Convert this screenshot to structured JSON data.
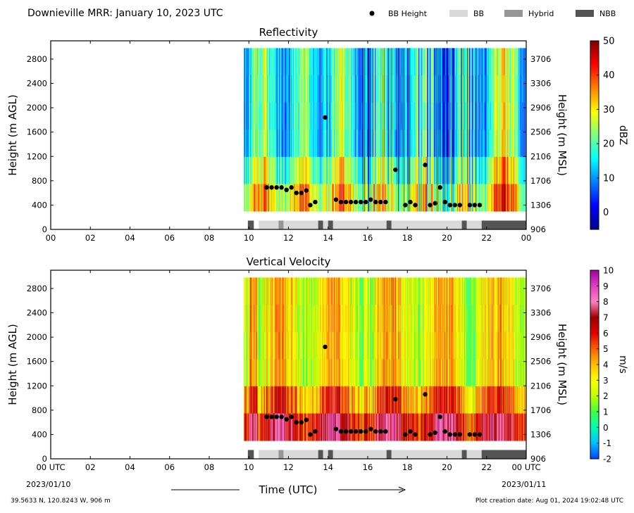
{
  "header": {
    "title": "Downieville MRR:  January 10, 2023 UTC",
    "legend": [
      {
        "label": "BB Height",
        "kind": "dot",
        "color": "#000000"
      },
      {
        "label": "BB",
        "kind": "box",
        "color": "#dadada"
      },
      {
        "label": "Hybrid",
        "kind": "box",
        "color": "#969696"
      },
      {
        "label": "NBB",
        "kind": "box",
        "color": "#545454"
      }
    ]
  },
  "footer": {
    "location": "39.5633 N, 120.8243 W, 906 m",
    "creation": "Plot creation date: Aug 01, 2024 19:02:48 UTC",
    "xlabel": "Time (UTC)",
    "start_date": "2023/01/10",
    "end_date": "2023/01/11"
  },
  "chart_data": [
    {
      "type": "heatmap",
      "title": "Reflectivity",
      "xlabel": "Time (UTC)",
      "ylabel": "Height (m AGL)",
      "ylabel_right": "Height (m MSL)",
      "colorbar_label": "dBZ",
      "xticks": [
        "00",
        "02",
        "04",
        "06",
        "08",
        "10",
        "12",
        "14",
        "16",
        "18",
        "20",
        "22",
        "00"
      ],
      "xlim": [
        0,
        24
      ],
      "yticks_left": [
        0,
        400,
        800,
        1200,
        1600,
        2000,
        2400,
        2800
      ],
      "yticks_right": [
        906,
        1306,
        1706,
        2106,
        2506,
        2906,
        3306,
        3706
      ],
      "ylim": [
        0,
        3100
      ],
      "colorbar_ticks": [
        0,
        10,
        20,
        30,
        40,
        50
      ],
      "colorbar_range": [
        -5,
        50
      ],
      "colormap": [
        "#00008f",
        "#0000ff",
        "#0080ff",
        "#00ffff",
        "#80ff80",
        "#ffff00",
        "#ff8000",
        "#ff0000",
        "#800000"
      ],
      "data_start_hour": 9.75,
      "data_bottom_m": 300,
      "bb_height": {
        "x": [
          10.9,
          11.15,
          11.4,
          11.65,
          11.9,
          12.15,
          12.4,
          12.65,
          12.9,
          13.1,
          13.35,
          13.85,
          14.4,
          14.65,
          14.9,
          15.15,
          15.4,
          15.65,
          15.9,
          16.15,
          16.4,
          16.65,
          16.9,
          17.4,
          17.9,
          18.15,
          18.4,
          18.9,
          19.15,
          19.4,
          19.65,
          19.9,
          20.15,
          20.4,
          20.65,
          21.15,
          21.4,
          21.65
        ],
        "y": [
          690,
          690,
          690,
          690,
          650,
          690,
          600,
          600,
          640,
          400,
          450,
          1840,
          490,
          450,
          450,
          450,
          450,
          450,
          450,
          490,
          450,
          450,
          450,
          980,
          400,
          450,
          400,
          1060,
          400,
          430,
          690,
          450,
          400,
          400,
          400,
          400,
          400,
          400
        ]
      },
      "bb_type": [
        {
          "start": 9.95,
          "end": 10.25,
          "type": "NBB"
        },
        {
          "start": 10.5,
          "end": 11.5,
          "type": "BB"
        },
        {
          "start": 11.5,
          "end": 11.75,
          "type": "Hybrid"
        },
        {
          "start": 11.75,
          "end": 13.5,
          "type": "BB"
        },
        {
          "start": 13.5,
          "end": 13.75,
          "type": "NBB"
        },
        {
          "start": 13.75,
          "end": 14.0,
          "type": "BB"
        },
        {
          "start": 14.0,
          "end": 14.25,
          "type": "NBB"
        },
        {
          "start": 14.25,
          "end": 16.95,
          "type": "BB"
        },
        {
          "start": 16.95,
          "end": 17.2,
          "type": "NBB"
        },
        {
          "start": 17.2,
          "end": 20.75,
          "type": "BB"
        },
        {
          "start": 20.75,
          "end": 21.0,
          "type": "NBB"
        },
        {
          "start": 21.0,
          "end": 21.75,
          "type": "BB"
        },
        {
          "start": 21.75,
          "end": 24.0,
          "type": "NBB"
        }
      ]
    },
    {
      "type": "heatmap",
      "title": "Vertical Velocity",
      "xlabel": "Time (UTC)",
      "ylabel": "Height (m AGL)",
      "ylabel_right": "Height (m MSL)",
      "colorbar_label": "m/s",
      "xticks": [
        "00 UTC",
        "02",
        "04",
        "06",
        "08",
        "10",
        "12",
        "14",
        "16",
        "18",
        "20",
        "22",
        "00 UTC"
      ],
      "xlim": [
        0,
        24
      ],
      "yticks_left": [
        0,
        400,
        800,
        1200,
        1600,
        2000,
        2400,
        2800
      ],
      "yticks_right": [
        906,
        1306,
        1706,
        2106,
        2506,
        2906,
        3306,
        3706
      ],
      "ylim": [
        0,
        3100
      ],
      "colorbar_ticks": [
        -2,
        -1,
        0,
        1,
        2,
        3,
        4,
        5,
        6,
        7,
        8,
        9,
        10
      ],
      "colorbar_range": [
        -2,
        10
      ],
      "colormap": [
        "#0040ff",
        "#00c0ff",
        "#00ffb0",
        "#40ff40",
        "#c0ff00",
        "#ffff00",
        "#ffc000",
        "#ff6000",
        "#e00000",
        "#a00000",
        "#ff80c0",
        "#e040c0",
        "#a000a0"
      ],
      "data_start_hour": 9.75,
      "data_bottom_m": 300,
      "bb_height": {
        "x": [
          10.9,
          11.15,
          11.4,
          11.65,
          11.9,
          12.15,
          12.4,
          12.65,
          12.9,
          13.1,
          13.35,
          13.85,
          14.4,
          14.65,
          14.9,
          15.15,
          15.4,
          15.65,
          15.9,
          16.15,
          16.4,
          16.65,
          16.9,
          17.4,
          17.9,
          18.15,
          18.4,
          18.9,
          19.15,
          19.4,
          19.65,
          19.9,
          20.15,
          20.4,
          20.65,
          21.15,
          21.4,
          21.65
        ],
        "y": [
          690,
          690,
          690,
          690,
          650,
          690,
          600,
          600,
          640,
          400,
          450,
          1840,
          490,
          450,
          450,
          450,
          450,
          450,
          450,
          490,
          450,
          450,
          450,
          980,
          400,
          450,
          400,
          1060,
          400,
          430,
          690,
          450,
          400,
          400,
          400,
          400,
          400,
          400
        ]
      },
      "bb_type": [
        {
          "start": 9.95,
          "end": 10.25,
          "type": "NBB"
        },
        {
          "start": 10.5,
          "end": 11.5,
          "type": "BB"
        },
        {
          "start": 11.5,
          "end": 11.75,
          "type": "Hybrid"
        },
        {
          "start": 11.75,
          "end": 13.5,
          "type": "BB"
        },
        {
          "start": 13.5,
          "end": 13.75,
          "type": "NBB"
        },
        {
          "start": 13.75,
          "end": 14.0,
          "type": "BB"
        },
        {
          "start": 14.0,
          "end": 14.25,
          "type": "NBB"
        },
        {
          "start": 14.25,
          "end": 16.95,
          "type": "BB"
        },
        {
          "start": 16.95,
          "end": 17.2,
          "type": "NBB"
        },
        {
          "start": 17.2,
          "end": 20.75,
          "type": "BB"
        },
        {
          "start": 20.75,
          "end": 21.0,
          "type": "NBB"
        },
        {
          "start": 21.0,
          "end": 21.75,
          "type": "BB"
        },
        {
          "start": 21.75,
          "end": 24.0,
          "type": "NBB"
        }
      ]
    }
  ]
}
